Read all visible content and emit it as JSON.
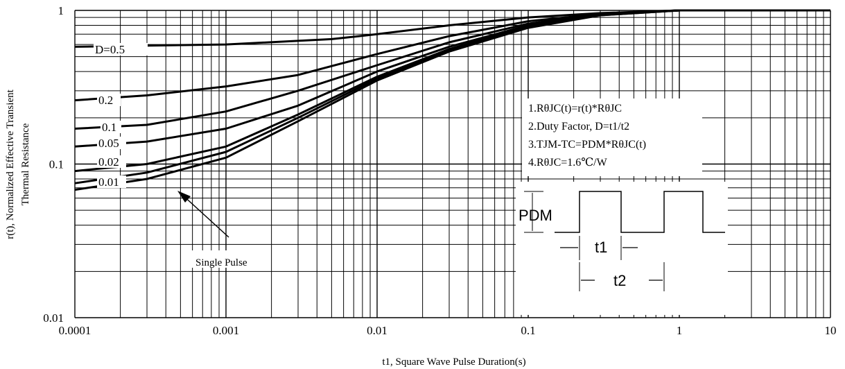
{
  "chart_data": {
    "type": "line",
    "xscale": "log",
    "yscale": "log",
    "xlim": [
      0.0001,
      10
    ],
    "ylim": [
      0.01,
      1
    ],
    "grid": true,
    "xlabel": "t1, Square Wave Pulse Duration(s)",
    "ylabel_line1": "r(t), Normalized Effective Transient",
    "ylabel_line2": "Thermal Resistance",
    "xticks": [
      {
        "value": 0.0001,
        "label": "0.0001"
      },
      {
        "value": 0.001,
        "label": "0.001"
      },
      {
        "value": 0.01,
        "label": "0.01"
      },
      {
        "value": 0.1,
        "label": "0.1"
      },
      {
        "value": 1,
        "label": "1"
      },
      {
        "value": 10,
        "label": "10"
      }
    ],
    "yticks": [
      {
        "value": 0.01,
        "label": "0.01"
      },
      {
        "value": 0.1,
        "label": "0.1"
      },
      {
        "value": 1,
        "label": "1"
      }
    ],
    "series": [
      {
        "name": "D=0.5",
        "x": [
          0.0001,
          0.0003,
          0.001,
          0.005,
          0.01,
          0.03,
          0.1,
          0.3,
          1,
          3,
          10
        ],
        "y": [
          0.58,
          0.59,
          0.6,
          0.65,
          0.7,
          0.8,
          0.9,
          0.96,
          1.0,
          1.0,
          1.0
        ]
      },
      {
        "name": "0.2",
        "x": [
          0.0001,
          0.0003,
          0.001,
          0.003,
          0.01,
          0.03,
          0.1,
          0.3,
          1,
          3,
          10
        ],
        "y": [
          0.26,
          0.28,
          0.32,
          0.38,
          0.52,
          0.68,
          0.85,
          0.95,
          1.0,
          1.0,
          1.0
        ]
      },
      {
        "name": "0.1",
        "x": [
          0.0001,
          0.0003,
          0.001,
          0.003,
          0.01,
          0.03,
          0.1,
          0.3,
          1,
          3,
          10
        ],
        "y": [
          0.17,
          0.18,
          0.22,
          0.3,
          0.44,
          0.62,
          0.82,
          0.95,
          1.0,
          1.0,
          1.0
        ]
      },
      {
        "name": "0.05",
        "x": [
          0.0001,
          0.0003,
          0.001,
          0.003,
          0.01,
          0.03,
          0.1,
          0.3,
          1,
          3,
          10
        ],
        "y": [
          0.13,
          0.14,
          0.17,
          0.24,
          0.4,
          0.58,
          0.8,
          0.94,
          1.0,
          1.0,
          1.0
        ]
      },
      {
        "name": "0.02",
        "x": [
          0.0001,
          0.0003,
          0.001,
          0.003,
          0.01,
          0.03,
          0.1,
          0.3,
          1,
          3,
          10
        ],
        "y": [
          0.09,
          0.1,
          0.13,
          0.21,
          0.37,
          0.56,
          0.79,
          0.94,
          1.0,
          1.0,
          1.0
        ]
      },
      {
        "name": "0.01",
        "x": [
          0.0001,
          0.0003,
          0.001,
          0.003,
          0.01,
          0.03,
          0.1,
          0.3,
          1,
          3,
          10
        ],
        "y": [
          0.075,
          0.088,
          0.12,
          0.2,
          0.36,
          0.55,
          0.78,
          0.93,
          1.0,
          1.0,
          1.0
        ]
      },
      {
        "name": "Single Pulse",
        "x": [
          0.0001,
          0.0003,
          0.001,
          0.003,
          0.01,
          0.03,
          0.1,
          0.3,
          1,
          3,
          10
        ],
        "y": [
          0.068,
          0.08,
          0.11,
          0.19,
          0.35,
          0.54,
          0.77,
          0.93,
          1.0,
          1.0,
          1.0
        ]
      }
    ],
    "curve_labels": [
      {
        "text": "D=0.5"
      },
      {
        "text": "0.2"
      },
      {
        "text": "0.1"
      },
      {
        "text": "0.05"
      },
      {
        "text": "0.02"
      },
      {
        "text": "0.01"
      },
      {
        "text": "Single Pulse"
      }
    ],
    "notes": [
      "1.RθJC(t)=r(t)*RθJC",
      "2.Duty Factor, D=t1/t2",
      "3.TJM-TC=PDM*RθJC(t)",
      "4.RθJC=1.6℃/W"
    ],
    "inset": {
      "pdm_label": "PDM",
      "t1_label": "t1",
      "t2_label": "t2"
    },
    "colors": {
      "line": "#000000",
      "background": "#ffffff"
    }
  }
}
